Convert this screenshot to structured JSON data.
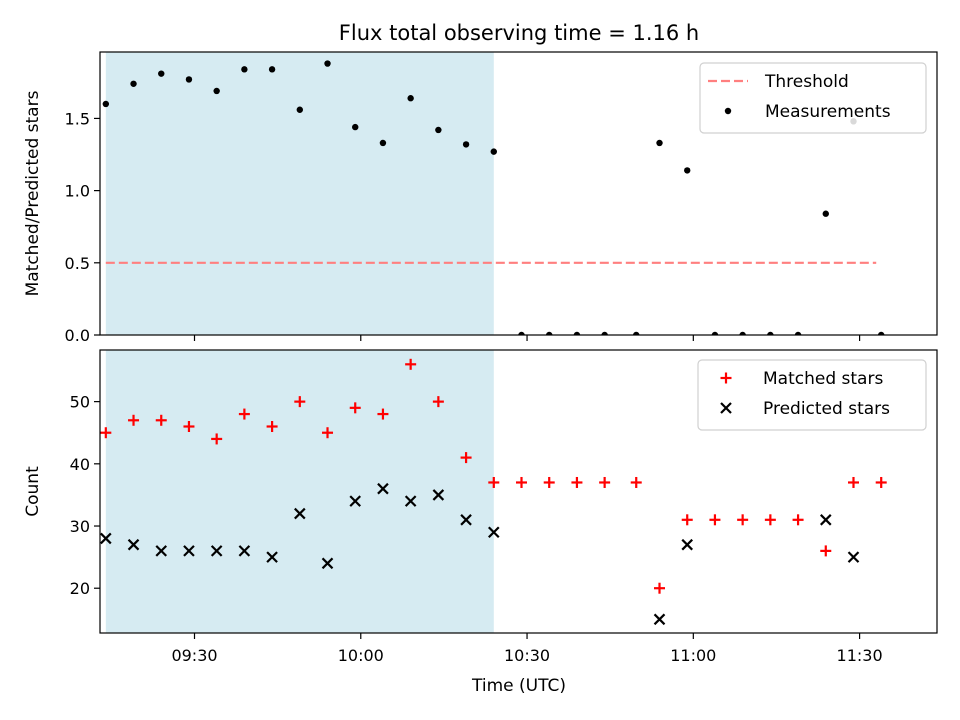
{
  "title": "Flux total observing time = 1.16 h",
  "xlabel": "Time (UTC)",
  "chart_data": [
    {
      "type": "scatter",
      "ylabel": "Matched/Predicted stars",
      "ylim": [
        0,
        1.96
      ],
      "xlim": [
        "09:12:57",
        "11:43:58"
      ],
      "yticks": [
        0.0,
        0.5,
        1.0,
        1.5
      ],
      "ytick_labels": [
        "0.0",
        "0.5",
        "1.0",
        "1.5"
      ],
      "highlight_span": [
        "09:14",
        "10:24"
      ],
      "highlight_color": "#add8e6",
      "legend": {
        "placement": "upper right",
        "entries": [
          "Threshold",
          "Measurements"
        ]
      },
      "series": [
        {
          "name": "Threshold",
          "kind": "dashed-line",
          "color": "#ff7f7f",
          "x": [
            "09:14",
            "11:33"
          ],
          "y": [
            0.5,
            0.5
          ]
        },
        {
          "name": "Measurements",
          "kind": "dots",
          "color": "#000000",
          "x": [
            "09:14",
            "09:19",
            "09:24",
            "09:29",
            "09:34",
            "09:39",
            "09:44",
            "09:49",
            "09:54",
            "09:59",
            "10:04",
            "10:09",
            "10:14",
            "10:19",
            "10:24",
            "10:29",
            "10:34",
            "10:39",
            "10:44",
            "10:49.7",
            "10:53.9",
            "10:58.9",
            "11:03.9",
            "11:08.9",
            "11:13.9",
            "11:18.9",
            "11:23.9",
            "11:28.9",
            "11:33.9"
          ],
          "y": [
            1.6,
            1.74,
            1.81,
            1.77,
            1.69,
            1.84,
            1.84,
            1.56,
            1.88,
            1.44,
            1.33,
            1.64,
            1.42,
            1.32,
            1.27,
            0,
            0,
            0,
            0,
            0,
            1.33,
            1.14,
            0,
            0,
            0,
            0,
            0.84,
            1.48,
            0
          ]
        }
      ]
    },
    {
      "type": "scatter",
      "ylabel": "Count",
      "ylim": [
        12.8,
        58.3
      ],
      "xlim": [
        "09:12:57",
        "11:43:58"
      ],
      "yticks": [
        20,
        30,
        40,
        50
      ],
      "ytick_labels": [
        "20",
        "30",
        "40",
        "50"
      ],
      "highlight_span": [
        "09:14",
        "10:24"
      ],
      "highlight_color": "#add8e6",
      "xticks": [
        "09:30",
        "10:00",
        "10:30",
        "11:00",
        "11:30"
      ],
      "xtick_labels": [
        "09:30",
        "10:00",
        "10:30",
        "11:00",
        "11:30"
      ],
      "legend": {
        "placement": "upper right",
        "entries": [
          "Matched stars",
          "Predicted stars"
        ]
      },
      "series": [
        {
          "name": "Matched stars",
          "marker": "+",
          "color": "#ff0000",
          "x": [
            "09:14",
            "09:19",
            "09:24",
            "09:29",
            "09:34",
            "09:39",
            "09:44",
            "09:49",
            "09:54",
            "09:59",
            "10:04",
            "10:09",
            "10:14",
            "10:19",
            "10:24",
            "10:29",
            "10:34",
            "10:39",
            "10:44",
            "10:49.7",
            "10:53.9",
            "10:58.9",
            "11:03.9",
            "11:08.9",
            "11:13.9",
            "11:18.9",
            "11:23.9",
            "11:28.9",
            "11:33.9"
          ],
          "y": [
            45,
            47,
            47,
            46,
            44,
            48,
            46,
            50,
            45,
            49,
            48,
            56,
            50,
            41,
            37,
            37,
            37,
            37,
            37,
            37,
            20,
            31,
            31,
            31,
            31,
            31,
            26,
            37,
            37
          ]
        },
        {
          "name": "Predicted stars",
          "marker": "x",
          "color": "#000000",
          "x": [
            "09:14",
            "09:19",
            "09:24",
            "09:29",
            "09:34",
            "09:39",
            "09:44",
            "09:49",
            "09:54",
            "09:59",
            "10:04",
            "10:09",
            "10:14",
            "10:19",
            "10:24",
            "10:53.9",
            "10:58.9",
            "11:23.9",
            "11:28.9"
          ],
          "y": [
            28,
            27,
            26,
            26,
            26,
            26,
            25,
            32,
            24,
            34,
            36,
            34,
            35,
            31,
            29,
            15,
            27,
            31,
            25
          ]
        }
      ]
    }
  ]
}
